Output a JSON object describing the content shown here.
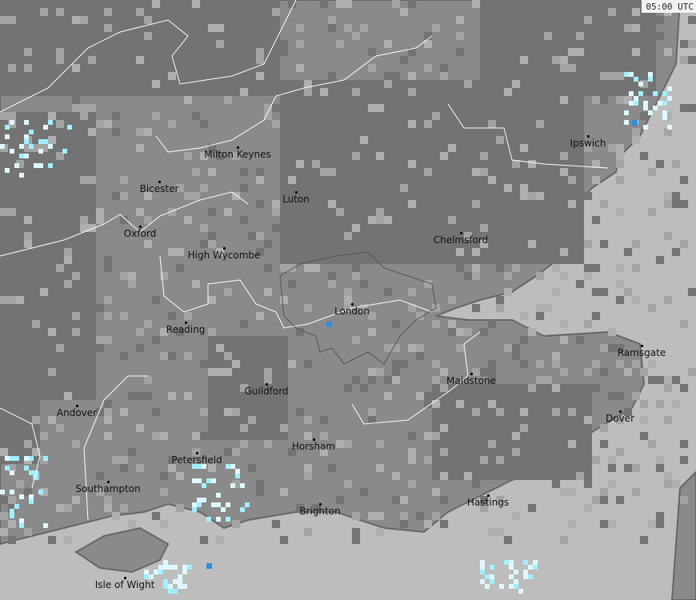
{
  "timestamp": "05:00 UTC",
  "colors": {
    "sea": "#bdbdbd",
    "land_dark": "#737373",
    "land_mid": "#8a8a8a",
    "land_light": "#a3a3a3",
    "rain_light": "#dff8ff",
    "rain_mid": "#9ff0ff",
    "rain_heavy": "#2c8fe0",
    "coast": "#666666",
    "border": "#ffffff"
  },
  "towns": [
    {
      "name": "Milton Keynes"
    },
    {
      "name": "Bicester"
    },
    {
      "name": "Luton"
    },
    {
      "name": "Ipswich"
    },
    {
      "name": "Oxford"
    },
    {
      "name": "High Wycombe"
    },
    {
      "name": "Chelmsford"
    },
    {
      "name": "London"
    },
    {
      "name": "Reading"
    },
    {
      "name": "Ramsgate"
    },
    {
      "name": "Maidstone"
    },
    {
      "name": "Guildford"
    },
    {
      "name": "Andover"
    },
    {
      "name": "Dover"
    },
    {
      "name": "Horsham"
    },
    {
      "name": "Petersfield"
    },
    {
      "name": "Southampton"
    },
    {
      "name": "Hastings"
    },
    {
      "name": "Brighton"
    },
    {
      "name": "Isle of Wight"
    }
  ]
}
